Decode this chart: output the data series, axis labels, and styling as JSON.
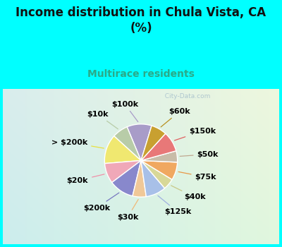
{
  "title": "Income distribution in Chula Vista, CA\n(%)",
  "subtitle": "Multirace residents",
  "background_color": "#00FFFF",
  "chart_bg": "#e8f5ef",
  "labels": [
    "$100k",
    "$10k",
    "> $200k",
    "$20k",
    "$200k",
    "$30k",
    "$125k",
    "$40k",
    "$75k",
    "$50k",
    "$150k",
    "$60k"
  ],
  "values": [
    11,
    7,
    13,
    9,
    11,
    6,
    9,
    5,
    8,
    5,
    9,
    7
  ],
  "colors": [
    "#a89cc8",
    "#b8cca8",
    "#f0e870",
    "#f0a8b8",
    "#8888cc",
    "#f0c898",
    "#a8c0e8",
    "#d8d898",
    "#f0a860",
    "#c8bca8",
    "#e87878",
    "#c8a030"
  ],
  "line_colors": [
    "#a89cc8",
    "#b8cca8",
    "#e8e040",
    "#f090a8",
    "#7878c0",
    "#f0b878",
    "#a0b0e0",
    "#c8c888",
    "#e89848",
    "#c0a890",
    "#e06060",
    "#b89020"
  ],
  "title_color": "#111111",
  "subtitle_color": "#2aaa88",
  "watermark": "  City-Data.com",
  "label_fontsize": 8,
  "title_fontsize": 12,
  "subtitle_fontsize": 10,
  "start_angle": 73
}
